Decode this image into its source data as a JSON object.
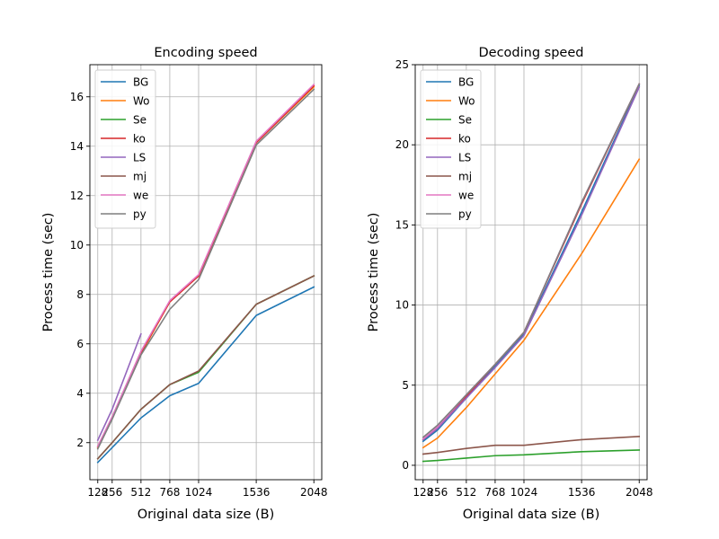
{
  "chart_data": [
    {
      "type": "line",
      "title": "Encoding speed",
      "xlabel": "Original data size (B)",
      "ylabel": "Process time (sec)",
      "x": [
        128,
        256,
        512,
        768,
        1024,
        1536,
        2048
      ],
      "xticks": [
        128,
        256,
        512,
        768,
        1024,
        1536,
        2048
      ],
      "xlim": [
        58,
        2118
      ],
      "ylim": [
        0.5,
        17.3
      ],
      "yticks": [
        2,
        4,
        6,
        8,
        10,
        12,
        14,
        16
      ],
      "grid": true,
      "legend_position": "upper-left",
      "series": [
        {
          "name": "BG",
          "color": "#1f77b4",
          "values": [
            1.2,
            1.8,
            3.0,
            3.9,
            4.4,
            7.15,
            8.3
          ]
        },
        {
          "name": "Wo",
          "color": "#ff7f0e",
          "values": [
            1.8,
            3.0,
            5.6,
            7.7,
            8.75,
            14.15,
            16.4
          ]
        },
        {
          "name": "Se",
          "color": "#2ca02c",
          "values": [
            1.35,
            2.0,
            3.35,
            4.35,
            4.85,
            7.6,
            8.75
          ]
        },
        {
          "name": "ko",
          "color": "#d62728",
          "values": [
            1.85,
            3.0,
            5.65,
            7.7,
            8.75,
            14.15,
            16.45
          ]
        },
        {
          "name": "LS",
          "color": "#9467bd",
          "values": [
            2.1,
            3.35,
            6.4,
            null,
            null,
            null,
            null
          ]
        },
        {
          "name": "mj",
          "color": "#8c564b",
          "values": [
            1.35,
            2.0,
            3.35,
            4.35,
            4.9,
            7.6,
            8.75
          ]
        },
        {
          "name": "we",
          "color": "#e377c2",
          "values": [
            1.85,
            3.05,
            5.7,
            7.75,
            8.8,
            14.2,
            16.5
          ]
        },
        {
          "name": "py",
          "color": "#7f7f7f",
          "values": [
            1.75,
            2.95,
            5.55,
            7.4,
            8.6,
            14.05,
            16.3
          ]
        }
      ]
    },
    {
      "type": "line",
      "title": "Decoding speed",
      "xlabel": "Original data size (B)",
      "ylabel": "Process time (sec)",
      "x": [
        128,
        256,
        512,
        768,
        1024,
        1536,
        2048
      ],
      "xticks": [
        128,
        256,
        512,
        768,
        1024,
        1536,
        2048
      ],
      "xlim": [
        58,
        2118
      ],
      "ylim": [
        -0.9,
        25
      ],
      "yticks": [
        0,
        5,
        10,
        15,
        20,
        25
      ],
      "grid": true,
      "legend_position": "upper-left",
      "series": [
        {
          "name": "BG",
          "color": "#1f77b4",
          "values": [
            1.5,
            2.2,
            4.2,
            6.2,
            8.2,
            15.8,
            23.7
          ]
        },
        {
          "name": "Wo",
          "color": "#ff7f0e",
          "values": [
            1.1,
            1.7,
            3.6,
            5.7,
            7.8,
            13.2,
            19.1
          ]
        },
        {
          "name": "Se",
          "color": "#2ca02c",
          "values": [
            0.25,
            0.3,
            0.45,
            0.6,
            0.65,
            0.85,
            0.95
          ]
        },
        {
          "name": "ko",
          "color": "#d62728",
          "values": [
            1.6,
            2.3,
            4.3,
            6.3,
            8.3,
            16.3,
            23.8
          ]
        },
        {
          "name": "LS",
          "color": "#9467bd",
          "values": [
            1.6,
            2.3,
            4.2,
            6.1,
            8.1,
            15.6,
            23.6
          ]
        },
        {
          "name": "mj",
          "color": "#8c564b",
          "values": [
            0.7,
            0.8,
            1.05,
            1.25,
            1.25,
            1.6,
            1.8
          ]
        },
        {
          "name": "we",
          "color": "#e377c2",
          "values": [
            1.65,
            2.4,
            4.4,
            6.3,
            8.3,
            16.4,
            23.8
          ]
        },
        {
          "name": "py",
          "color": "#7f7f7f",
          "values": [
            1.75,
            2.5,
            4.4,
            6.3,
            8.3,
            16.4,
            23.8
          ]
        }
      ]
    }
  ]
}
